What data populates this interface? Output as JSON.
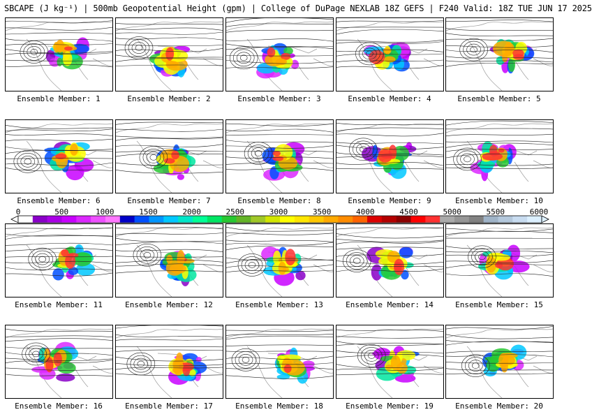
{
  "title": "SBCAPE (J kg⁻¹) | 500mb Geopotential Height (gpm) | College of DuPage NEXLAB 18Z GEFS | F240 Valid: 18Z TUE JUN 17 2025",
  "label_prefix": "Ensemble Member: ",
  "members": [
    1,
    2,
    3,
    4,
    5,
    6,
    7,
    8,
    9,
    10,
    11,
    12,
    13,
    14,
    15,
    16,
    17,
    18,
    19,
    20
  ],
  "colorbar": {
    "ticks": [
      "0",
      "500",
      "1000",
      "1500",
      "2000",
      "2500",
      "3000",
      "3500",
      "4000",
      "4500",
      "5000",
      "5500",
      "6000"
    ],
    "colors": [
      "#ffffff",
      "#8a00c8",
      "#aa00e6",
      "#c800ff",
      "#dc28ff",
      "#ee50ff",
      "#ff78ff",
      "#0000c8",
      "#0050ff",
      "#0096ff",
      "#00c8ff",
      "#00e6c8",
      "#00ff96",
      "#00e664",
      "#28c832",
      "#64b428",
      "#a0c828",
      "#d2e600",
      "#ffff00",
      "#ffe600",
      "#ffc800",
      "#ffaa00",
      "#ff8c00",
      "#ff6400",
      "#dc0000",
      "#b40000",
      "#8c0000",
      "#ff0000",
      "#ff3232",
      "#aaaaaa",
      "#969696",
      "#828282",
      "#a0b4c8",
      "#b4c8dc",
      "#c8dcf0",
      "#dcf0ff"
    ]
  }
}
